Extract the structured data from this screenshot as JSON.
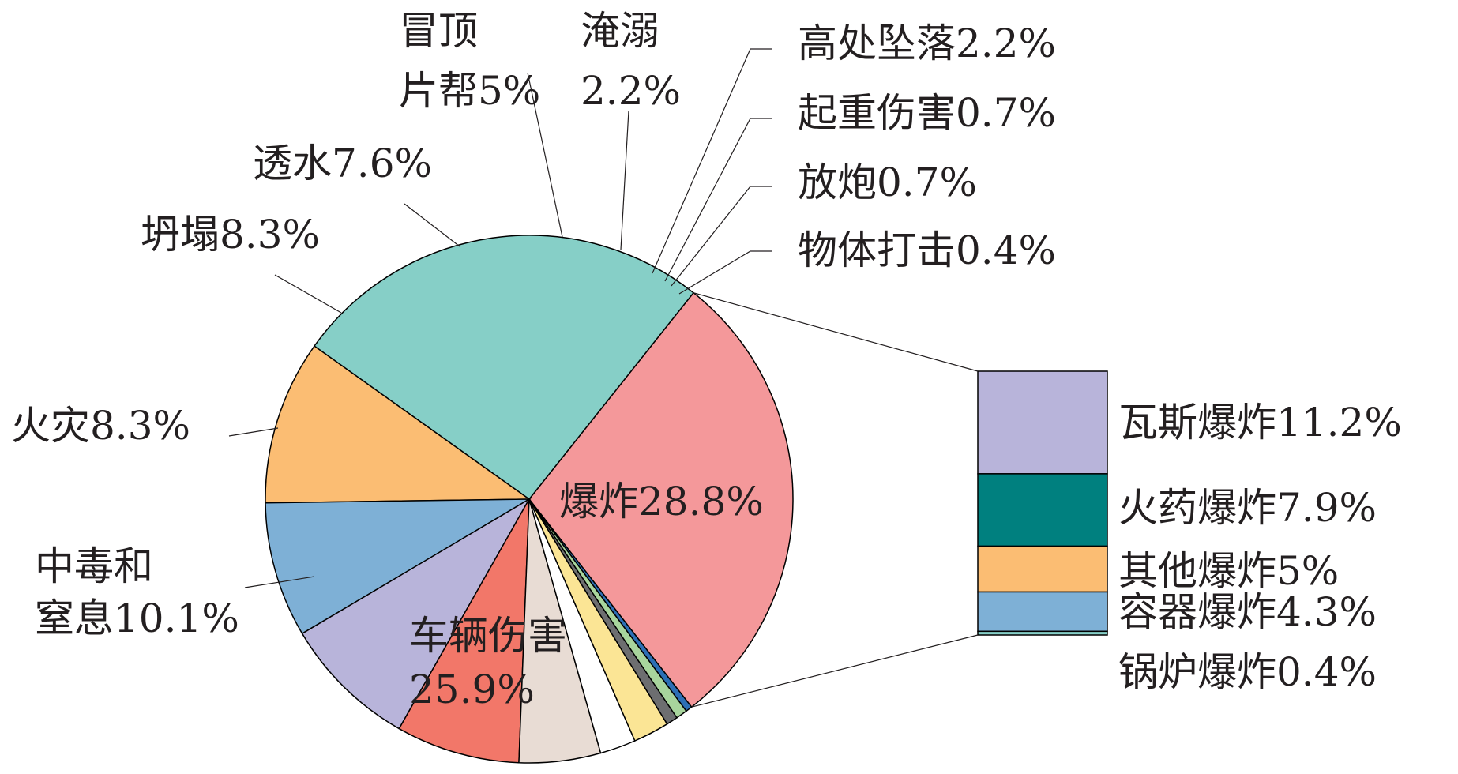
{
  "chart_data": [
    {
      "type": "pie",
      "unit": "%",
      "slices": [
        {
          "label": "爆炸28.8%",
          "value": 28.8,
          "color": "#f4989a"
        },
        {
          "label": "车辆伤害 25.9%",
          "value": 25.9,
          "color": "#86cfc7"
        },
        {
          "label": "中毒和 窒息10.1%",
          "value": 10.1,
          "color": "#fbbd73"
        },
        {
          "label": "火灾8.3%",
          "value": 8.3,
          "color": "#7eb0d6"
        },
        {
          "label": "坍塌8.3%",
          "value": 8.3,
          "color": "#b8b4da"
        },
        {
          "label": "透水7.6%",
          "value": 7.6,
          "color": "#f27769"
        },
        {
          "label": "冒顶 片帮5%",
          "value": 5.0,
          "color": "#e8dcd4"
        },
        {
          "label": "淹溺 2.2%",
          "value": 2.2,
          "color": "#ffffff"
        },
        {
          "label": "高处坠落2.2%",
          "value": 2.2,
          "color": "#fbe595"
        },
        {
          "label": "起重伤害0.7%",
          "value": 0.7,
          "color": "#6d6e70"
        },
        {
          "label": "放炮0.7%",
          "value": 0.7,
          "color": "#a8d59d"
        },
        {
          "label": "物体打击0.4%",
          "value": 0.4,
          "color": "#2c6fb5"
        }
      ]
    },
    {
      "type": "bar",
      "stacked": true,
      "detail_of": "爆炸28.8%",
      "unit": "%",
      "segments": [
        {
          "label": "瓦斯爆炸11.2%",
          "value": 11.2,
          "color": "#b8b4da"
        },
        {
          "label": "火药爆炸7.9%",
          "value": 7.9,
          "color": "#00807f"
        },
        {
          "label": "其他爆炸5%",
          "value": 5.0,
          "color": "#fbbd73"
        },
        {
          "label": "容器爆炸4.3%",
          "value": 4.3,
          "color": "#7eb0d6"
        },
        {
          "label": "锅炉爆炸0.4%",
          "value": 0.4,
          "color": "#86cfc7"
        }
      ]
    }
  ]
}
